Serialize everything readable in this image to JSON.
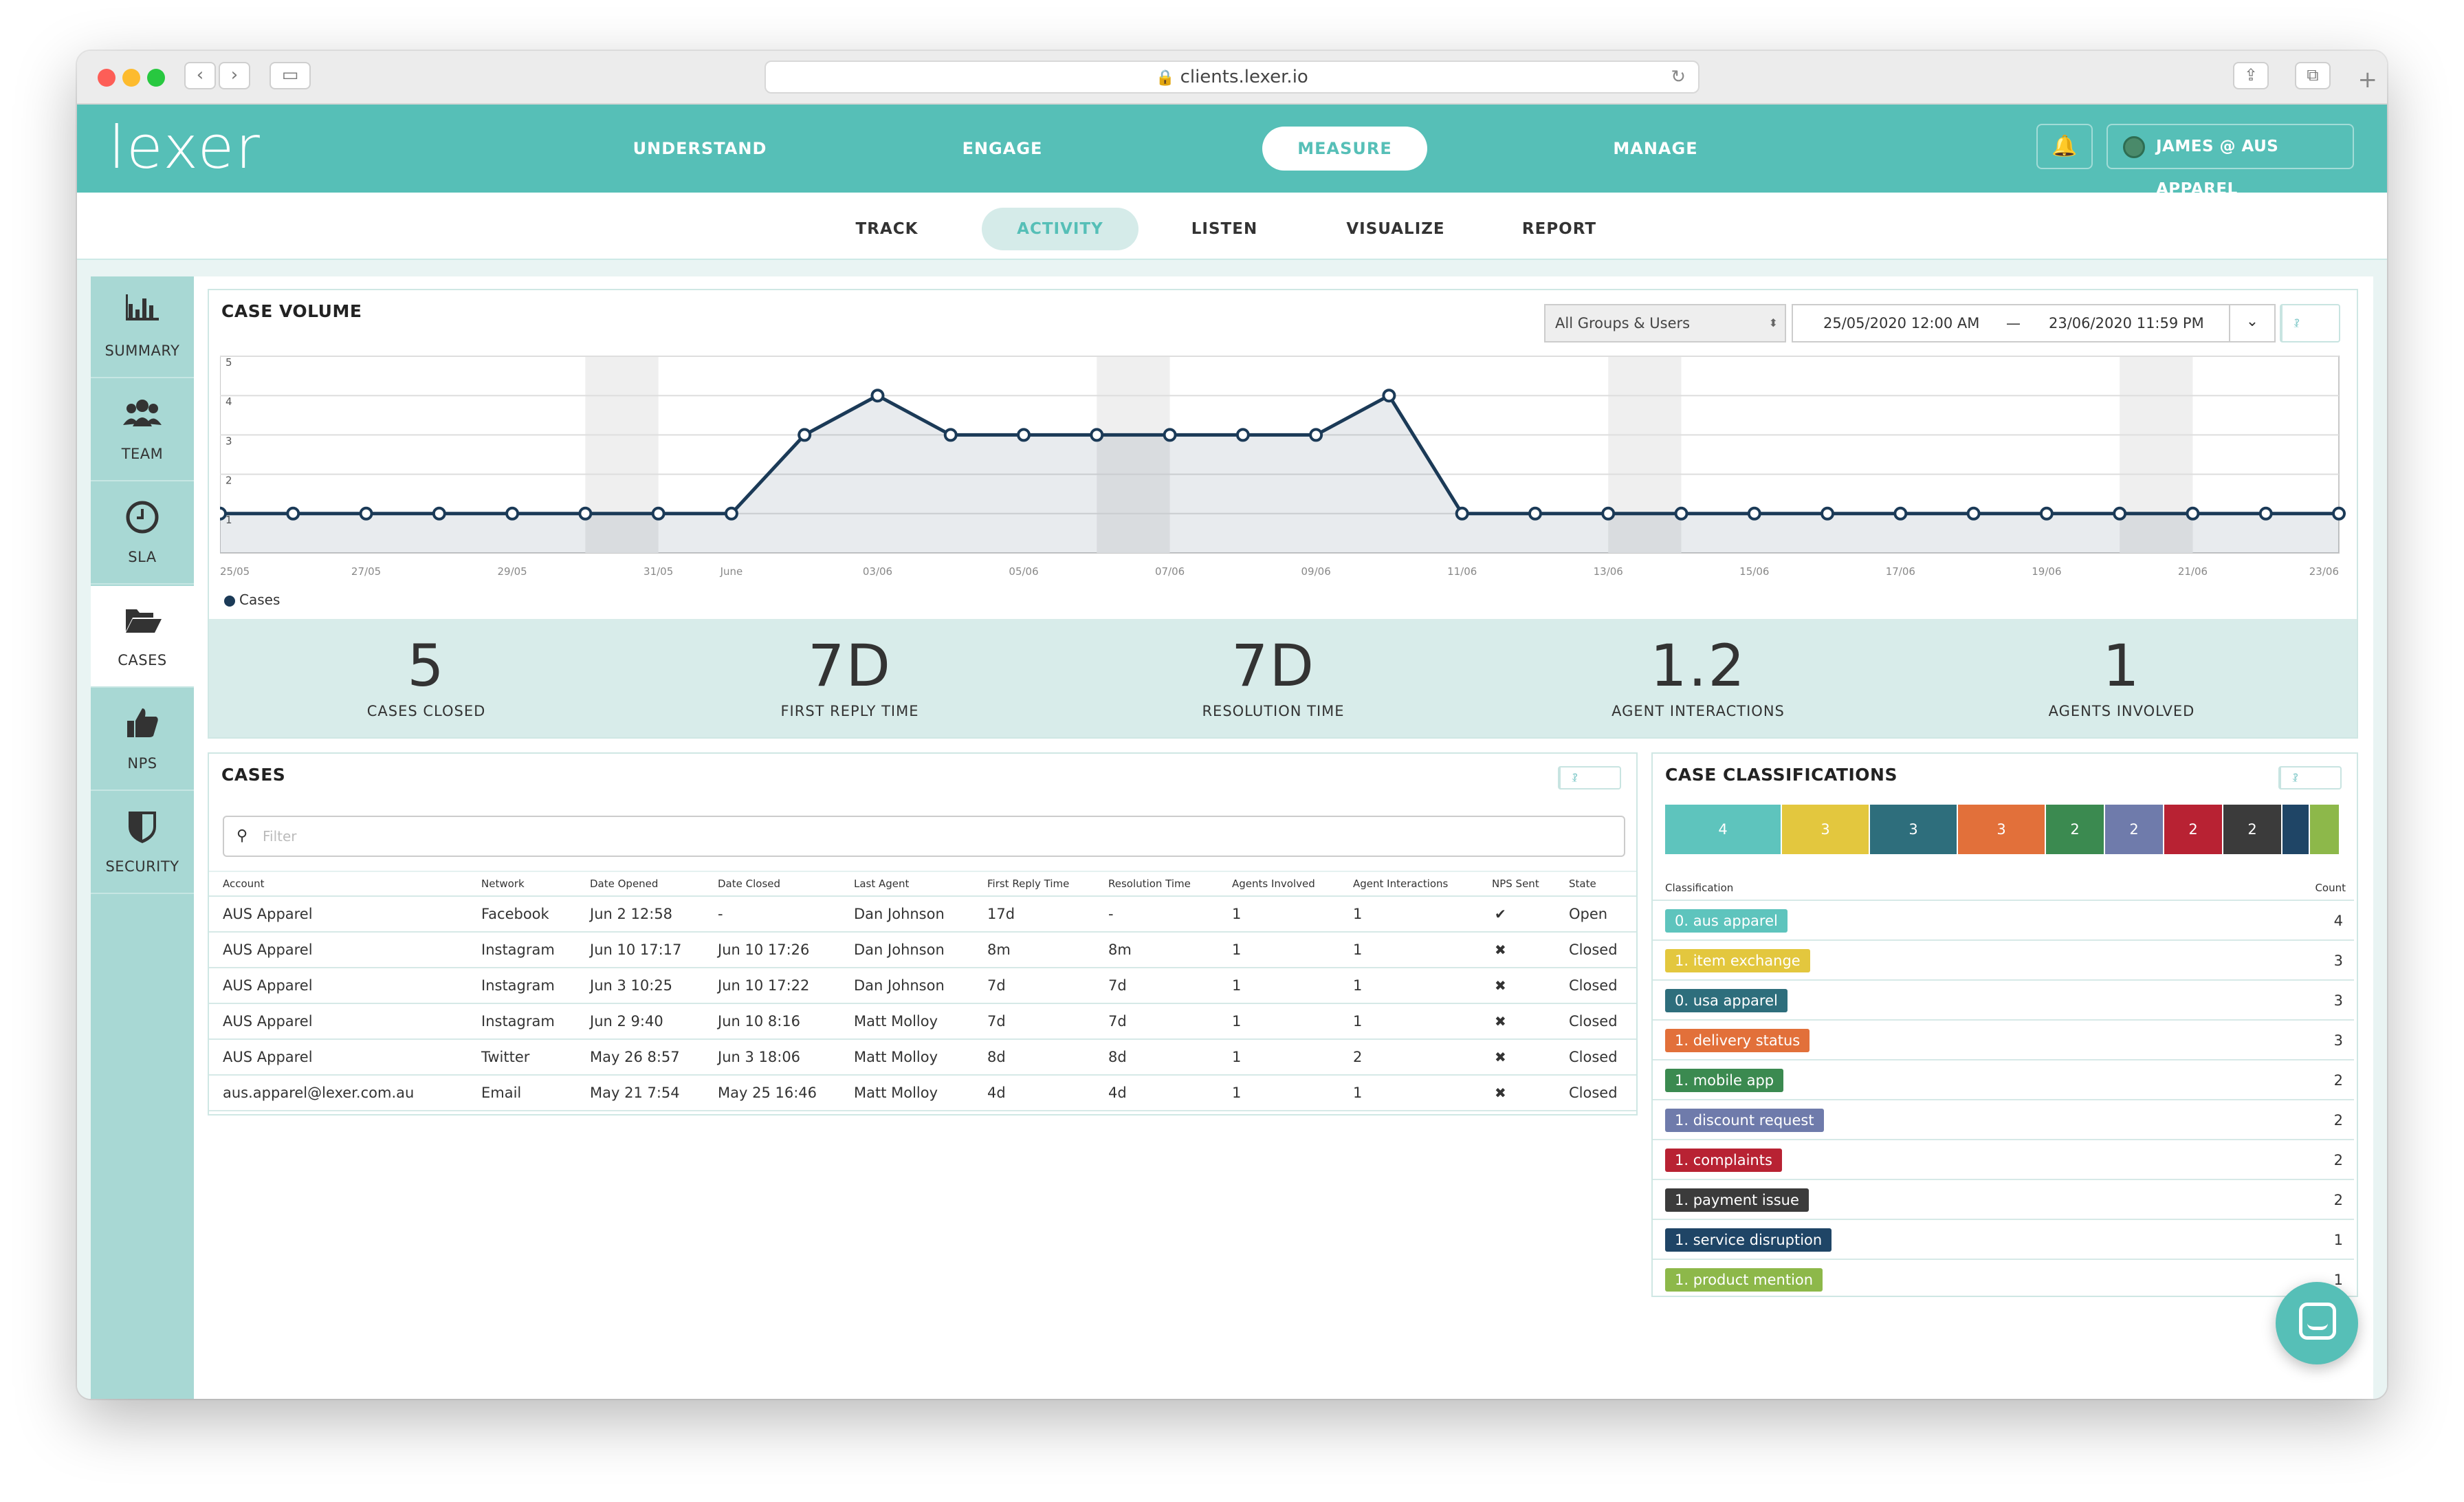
{
  "browser": {
    "url": "clients.lexer.io"
  },
  "brand": {
    "logo_text": "lexer",
    "accent": "#56bfb7",
    "dark": "#1b3a57"
  },
  "topnav": {
    "items": [
      "UNDERSTAND",
      "ENGAGE",
      "MEASURE",
      "MANAGE"
    ],
    "active": "MEASURE",
    "user": "JAMES @ AUS APPAREL"
  },
  "subnav": {
    "items": [
      "TRACK",
      "ACTIVITY",
      "LISTEN",
      "VISUALIZE",
      "REPORT"
    ],
    "active": "ACTIVITY"
  },
  "sidebar": {
    "items": [
      "SUMMARY",
      "TEAM",
      "SLA",
      "CASES",
      "NPS",
      "SECURITY"
    ],
    "active": "CASES"
  },
  "case_volume": {
    "title": "CASE VOLUME",
    "group_select": "All Groups & Users",
    "date_from": "25/05/2020 12:00 AM",
    "date_sep": "—",
    "date_to": "23/06/2020 11:59 PM",
    "legend": "Cases"
  },
  "chart_data": {
    "type": "area",
    "title": "CASE VOLUME",
    "series": [
      {
        "name": "Cases",
        "values": [
          1,
          1,
          1,
          1,
          1,
          1,
          1,
          1,
          3,
          4,
          3,
          3,
          3,
          3,
          3,
          3,
          4,
          1,
          1,
          1,
          1,
          1,
          1,
          1,
          1,
          1,
          1,
          1,
          1,
          1
        ]
      }
    ],
    "x": [
      "25/05",
      "26/05",
      "27/05",
      "28/05",
      "29/05",
      "30/05",
      "31/05",
      "June",
      "02/06",
      "03/06",
      "04/06",
      "05/06",
      "06/06",
      "07/06",
      "08/06",
      "09/06",
      "10/06",
      "11/06",
      "12/06",
      "13/06",
      "14/06",
      "15/06",
      "16/06",
      "17/06",
      "18/06",
      "19/06",
      "20/06",
      "21/06",
      "22/06",
      "23/06"
    ],
    "xtick_labels": [
      "25/05",
      "27/05",
      "29/05",
      "31/05",
      "June",
      "03/06",
      "05/06",
      "07/06",
      "09/06",
      "11/06",
      "13/06",
      "15/06",
      "17/06",
      "19/06",
      "21/06",
      "23/06"
    ],
    "yticks": [
      1,
      2,
      3,
      4,
      5
    ],
    "ylim": [
      0,
      5
    ],
    "shaded_weekends": [
      [
        "30/05",
        "31/05"
      ],
      [
        "06/06",
        "07/06"
      ],
      [
        "13/06",
        "14/06"
      ],
      [
        "20/06",
        "21/06"
      ]
    ],
    "grid": true,
    "legend": "bottom-left"
  },
  "stats": [
    {
      "value": "5",
      "label": "CASES CLOSED"
    },
    {
      "value": "7D",
      "label": "FIRST REPLY TIME"
    },
    {
      "value": "7D",
      "label": "RESOLUTION TIME"
    },
    {
      "value": "1.2",
      "label": "AGENT INTERACTIONS"
    },
    {
      "value": "1",
      "label": "AGENTS INVOLVED"
    }
  ],
  "cases": {
    "title": "CASES",
    "filter_placeholder": "Filter",
    "columns": [
      "Account",
      "Network",
      "Date Opened",
      "Date Closed",
      "Last Agent",
      "First Reply Time",
      "Resolution Time",
      "Agents Involved",
      "Agent Interactions",
      "NPS Sent",
      "State"
    ],
    "rows": [
      [
        "AUS Apparel",
        "Facebook",
        "Jun 2 12:58",
        "-",
        "Dan Johnson",
        "17d",
        "-",
        "1",
        "1",
        "✔",
        "Open"
      ],
      [
        "AUS Apparel",
        "Instagram",
        "Jun 10 17:17",
        "Jun 10 17:26",
        "Dan Johnson",
        "8m",
        "8m",
        "1",
        "1",
        "✖",
        "Closed"
      ],
      [
        "AUS Apparel",
        "Instagram",
        "Jun 3 10:25",
        "Jun 10 17:22",
        "Dan Johnson",
        "7d",
        "7d",
        "1",
        "1",
        "✖",
        "Closed"
      ],
      [
        "AUS Apparel",
        "Instagram",
        "Jun 2 9:40",
        "Jun 10 8:16",
        "Matt Molloy",
        "7d",
        "7d",
        "1",
        "1",
        "✖",
        "Closed"
      ],
      [
        "AUS Apparel",
        "Twitter",
        "May 26 8:57",
        "Jun 3 18:06",
        "Matt Molloy",
        "8d",
        "8d",
        "1",
        "2",
        "✖",
        "Closed"
      ],
      [
        "aus.apparel@lexer.com.au",
        "Email",
        "May 21 7:54",
        "May 25 16:46",
        "Matt Molloy",
        "4d",
        "4d",
        "1",
        "1",
        "✖",
        "Closed"
      ]
    ]
  },
  "classifications": {
    "title": "CASE CLASSIFICATIONS",
    "col_label": "Classification",
    "col_count": "Count",
    "bar": [
      {
        "value": "4",
        "color": "#5ec4bd"
      },
      {
        "value": "3",
        "color": "#e3c73e"
      },
      {
        "value": "3",
        "color": "#2e6e7c"
      },
      {
        "value": "3",
        "color": "#e2703a"
      },
      {
        "value": "2",
        "color": "#3b8a50"
      },
      {
        "value": "2",
        "color": "#6f7bab"
      },
      {
        "value": "2",
        "color": "#b82233"
      },
      {
        "value": "2",
        "color": "#3b3b3b"
      },
      {
        "value": "",
        "color": "#1f4566"
      },
      {
        "value": "",
        "color": "#8db84a"
      }
    ],
    "rows": [
      {
        "label": "0. aus apparel",
        "count": "4",
        "color": "#5ec4bd"
      },
      {
        "label": "1. item exchange",
        "count": "3",
        "color": "#e3c73e"
      },
      {
        "label": "0. usa apparel",
        "count": "3",
        "color": "#2e6e7c"
      },
      {
        "label": "1. delivery status",
        "count": "3",
        "color": "#e2703a"
      },
      {
        "label": "1. mobile app",
        "count": "2",
        "color": "#3b8a50"
      },
      {
        "label": "1. discount request",
        "count": "2",
        "color": "#6f7bab"
      },
      {
        "label": "1. complaints",
        "count": "2",
        "color": "#b82233"
      },
      {
        "label": "1. payment issue",
        "count": "2",
        "color": "#3b3b3b"
      },
      {
        "label": "1. service disruption",
        "count": "1",
        "color": "#1f4566"
      },
      {
        "label": "1. product mention",
        "count": "1",
        "color": "#8db84a"
      }
    ]
  }
}
